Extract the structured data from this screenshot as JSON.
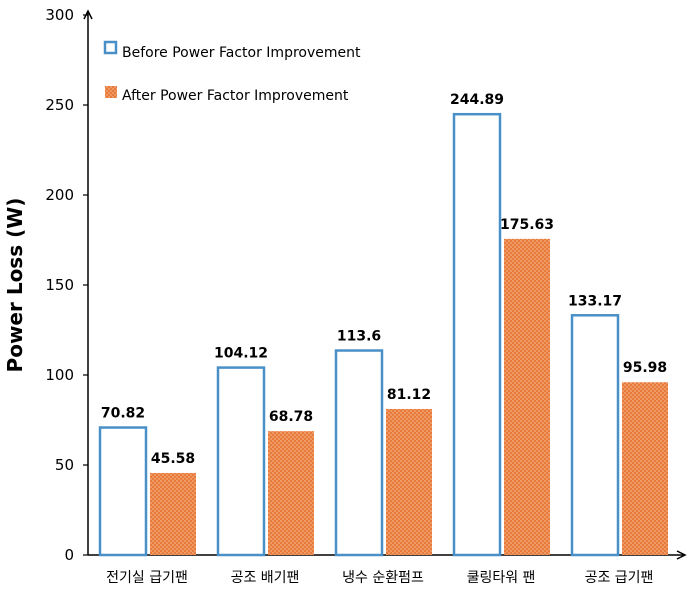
{
  "chart_data": {
    "type": "bar",
    "categories": [
      "전기실 급기팬",
      "공조 배기팬",
      "냉수 순환펌프",
      "쿨링타워 팬",
      "공조 급기팬"
    ],
    "series": [
      {
        "name": "Before Power Factor Improvement",
        "values": [
          70.82,
          104.12,
          113.6,
          244.89,
          133.17
        ],
        "color": "#4a90c8",
        "fill": "#ffffff"
      },
      {
        "name": "After Power Factor Improvement",
        "values": [
          45.58,
          68.78,
          81.12,
          175.63,
          95.98
        ],
        "color": "#e87a3a",
        "fill": "#e87a3a"
      }
    ],
    "data_labels": [
      [
        "70.82",
        "104.12",
        "113.6",
        "244.89",
        "133.17"
      ],
      [
        "45.58",
        "68.78",
        "81.12",
        "175.63",
        "95.98"
      ]
    ],
    "ylabel": "Power Loss (W)",
    "xlabel": "",
    "ylim": [
      0,
      300
    ],
    "yticks": [
      "0",
      "50",
      "100",
      "150",
      "200",
      "250",
      "300"
    ],
    "grid": false,
    "legend": "top-left"
  }
}
